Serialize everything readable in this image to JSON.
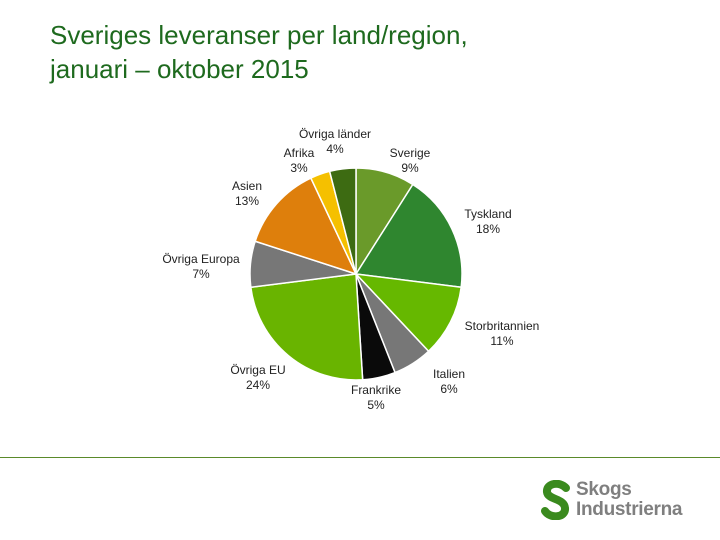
{
  "title": {
    "line1": "Sveriges leveranser per land/region,",
    "line2": "januari – oktober 2015"
  },
  "chart_data": {
    "type": "pie",
    "start_angle_deg": 0,
    "direction": "clockwise",
    "slices": [
      {
        "name": "Sverige",
        "value": 9,
        "label": "9%",
        "color": "#6a9a2a"
      },
      {
        "name": "Tyskland",
        "value": 18,
        "label": "18%",
        "color": "#2f862f"
      },
      {
        "name": "Storbritannien",
        "value": 11,
        "label": "11%",
        "color": "#66b800"
      },
      {
        "name": "Italien",
        "value": 6,
        "label": "6%",
        "color": "#777777"
      },
      {
        "name": "Frankrike",
        "value": 5,
        "label": "5%",
        "color": "#0a0a0a"
      },
      {
        "name": "Övriga EU",
        "value": 24,
        "label": "24%",
        "color": "#69b400"
      },
      {
        "name": "Övriga Europa",
        "value": 7,
        "label": "7%",
        "color": "#777777"
      },
      {
        "name": "Asien",
        "value": 13,
        "label": "13%",
        "color": "#de7f0c"
      },
      {
        "name": "Afrika",
        "value": 3,
        "label": "3%",
        "color": "#f5c000"
      },
      {
        "name": "Övriga länder",
        "value": 4,
        "label": "4%",
        "color": "#3d6b12"
      }
    ]
  },
  "logo": {
    "line1": "Skogs",
    "line2": "Industrierna",
    "color": "#7f7f7f",
    "mark_color": "#3a8a1e"
  }
}
